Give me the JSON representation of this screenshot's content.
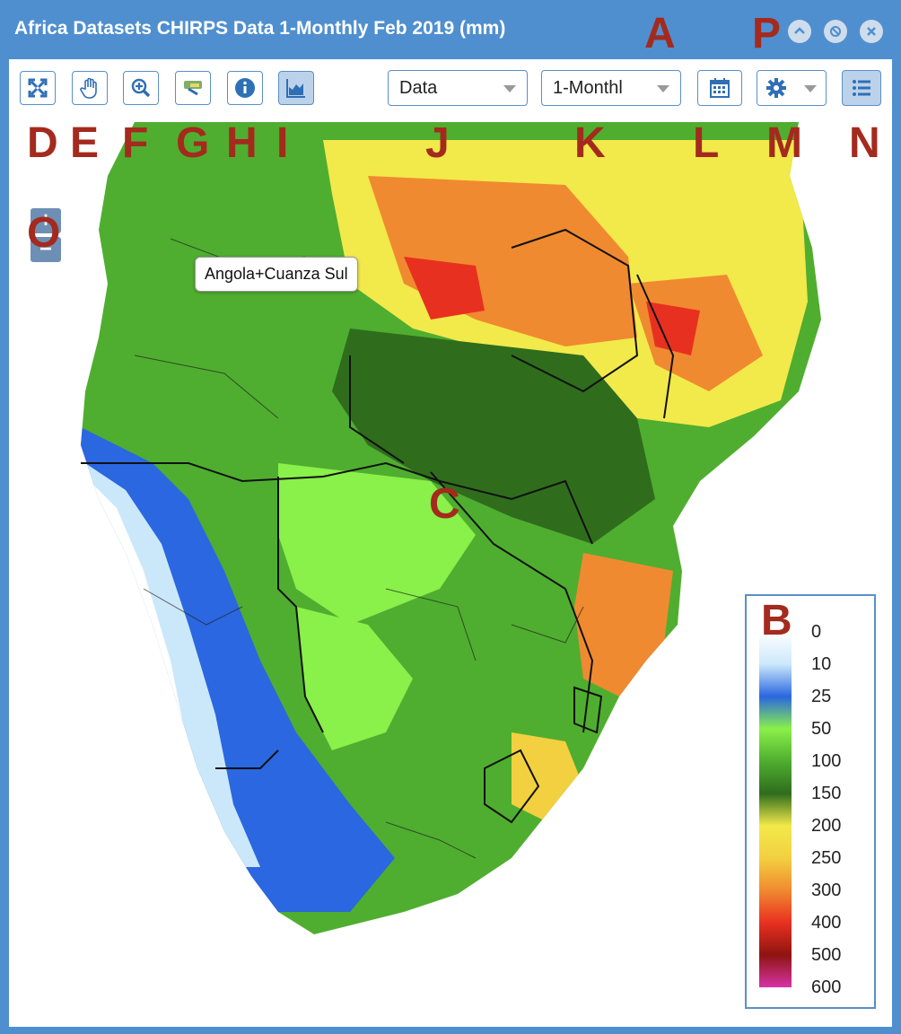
{
  "window": {
    "title": "Africa Datasets CHIRPS Data 1-Monthly Feb 2019 (mm)"
  },
  "title_buttons": {
    "collapse_icon": "chevron-up-icon",
    "minimize_icon": "block-icon",
    "close_icon": "close-icon"
  },
  "toolbar": {
    "tools": [
      {
        "name": "full-extent-icon"
      },
      {
        "name": "pan-hand-icon"
      },
      {
        "name": "zoom-in-icon"
      },
      {
        "name": "identify-region-icon"
      },
      {
        "name": "info-icon"
      },
      {
        "name": "chart-icon"
      }
    ],
    "data_select": "Data",
    "interval_select": "1-Monthl",
    "calendar_icon": "calendar-icon",
    "settings_icon": "gear-icon",
    "legend_toggle_icon": "list-icon"
  },
  "map": {
    "zoom_in": "+",
    "zoom_out": "−",
    "tooltip": "Angola+Cuanza Sul"
  },
  "legend": {
    "labels": [
      "0",
      "10",
      "25",
      "50",
      "100",
      "150",
      "200",
      "250",
      "300",
      "400",
      "500",
      "600"
    ],
    "colors": [
      "#ffffff",
      "#cbe8fb",
      "#2a67e0",
      "#8af04a",
      "#4fae2f",
      "#2f6d1d",
      "#f2e94a",
      "#f2d040",
      "#f08a30",
      "#e83020",
      "#8e1410",
      "#d633a6"
    ]
  },
  "callouts": {
    "A": "A",
    "B": "B",
    "C": "C",
    "D": "D",
    "E": "E",
    "F": "F",
    "G": "G",
    "H": "H",
    "I": "I",
    "J": "J",
    "K": "K",
    "L": "L",
    "M": "M",
    "N": "N",
    "O": "O",
    "P": "P"
  }
}
